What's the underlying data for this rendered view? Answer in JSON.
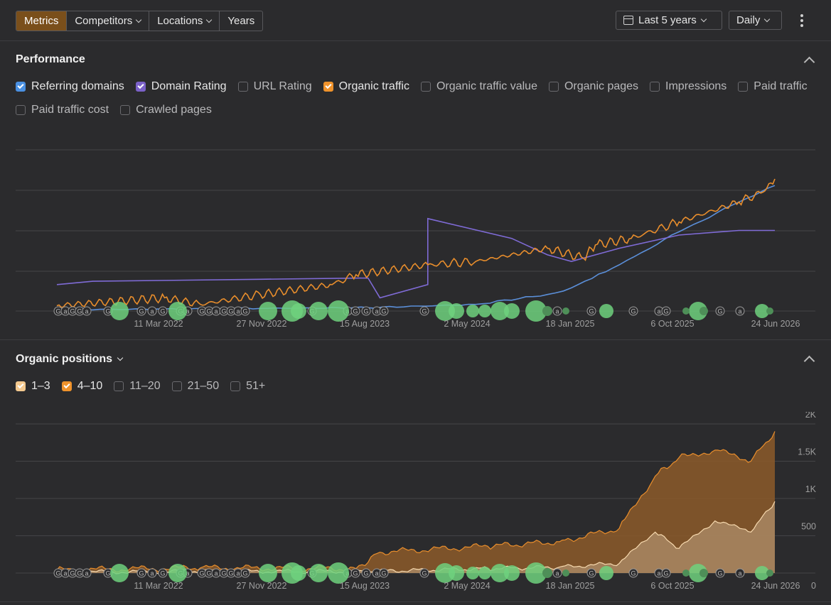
{
  "toolbar": {
    "tabs": [
      {
        "label": "Metrics",
        "active": true,
        "dropdown": false
      },
      {
        "label": "Competitors",
        "active": false,
        "dropdown": true
      },
      {
        "label": "Locations",
        "active": false,
        "dropdown": true
      },
      {
        "label": "Years",
        "active": false,
        "dropdown": false
      }
    ],
    "date_range": "Last 5 years",
    "granularity": "Daily",
    "menu_icon": "kebab-menu-icon"
  },
  "performance": {
    "title": "Performance",
    "metrics": [
      {
        "label": "Referring domains",
        "checked": true,
        "color": "#4a90e2"
      },
      {
        "label": "Domain Rating",
        "checked": true,
        "color": "#7b61c9"
      },
      {
        "label": "URL Rating",
        "checked": false
      },
      {
        "label": "Organic traffic",
        "checked": true,
        "color": "#f0932b"
      },
      {
        "label": "Organic traffic value",
        "checked": false
      },
      {
        "label": "Organic pages",
        "checked": false
      },
      {
        "label": "Impressions",
        "checked": false
      },
      {
        "label": "Paid traffic",
        "checked": false
      },
      {
        "label": "Paid traffic cost",
        "checked": false
      },
      {
        "label": "Crawled pages",
        "checked": false
      }
    ]
  },
  "positions": {
    "title": "Organic positions",
    "ranges": [
      {
        "label": "1–3",
        "checked": true,
        "color": "#f4c98f"
      },
      {
        "label": "4–10",
        "checked": true,
        "color": "#f0932b"
      },
      {
        "label": "11–20",
        "checked": false
      },
      {
        "label": "21–50",
        "checked": false
      },
      {
        "label": "51+",
        "checked": false
      }
    ]
  },
  "chart_data": [
    {
      "type": "line",
      "x_tick_labels": [
        "11 Mar 2022",
        "27 Nov 2022",
        "15 Aug 2023",
        "2 May 2024",
        "18 Jan 2025",
        "6 Oct 2025",
        "24 Jun 2026"
      ],
      "y_scale": "unlabeled (relative)",
      "grid": true,
      "series": [
        {
          "name": "Referring domains",
          "color": "#4a90e2",
          "x": [
            "2021-06",
            "2022-03",
            "2022-11",
            "2023-08",
            "2024-05",
            "2024-11",
            "2025-01",
            "2025-05",
            "2025-10",
            "2026-03",
            "2026-06"
          ],
          "values": [
            2,
            3,
            4,
            5,
            10,
            25,
            35,
            70,
            120,
            165,
            190
          ]
        },
        {
          "name": "Domain Rating",
          "color": "#7b61c9",
          "x": [
            "2021-06",
            "2021-09",
            "2022-11",
            "2023-08",
            "2023-09",
            "2024-01",
            "2024-01",
            "2024-08",
            "2024-11",
            "2025-01",
            "2025-05",
            "2025-10",
            "2026-03",
            "2026-06"
          ],
          "values": [
            40,
            45,
            48,
            50,
            20,
            40,
            140,
            110,
            85,
            75,
            95,
            115,
            122,
            122
          ]
        },
        {
          "name": "Organic traffic",
          "color": "#f0932b",
          "x": [
            "2021-06",
            "2022-03",
            "2022-06",
            "2022-11",
            "2023-05",
            "2023-07",
            "2024-01",
            "2024-05",
            "2024-11",
            "2025-02",
            "2025-03",
            "2025-06",
            "2025-10",
            "2026-03",
            "2026-05",
            "2026-06"
          ],
          "values": [
            8,
            20,
            10,
            25,
            40,
            55,
            70,
            75,
            95,
            80,
            100,
            110,
            135,
            165,
            180,
            200
          ]
        }
      ],
      "event_markers": "google-update-icon / annotation-icon markers along x-axis"
    },
    {
      "type": "area",
      "x_tick_labels": [
        "11 Mar 2022",
        "27 Nov 2022",
        "15 Aug 2023",
        "2 May 2024",
        "18 Jan 2025",
        "6 Oct 2025",
        "24 Jun 2026"
      ],
      "y_tick_labels": [
        "0",
        "500",
        "1K",
        "1.5K",
        "2K"
      ],
      "ylim": [
        0,
        2000
      ],
      "grid": true,
      "series": [
        {
          "name": "4–10",
          "color": "#f0932b",
          "x": [
            "2021-06",
            "2022-06",
            "2023-07",
            "2023-09",
            "2024-06",
            "2024-12",
            "2025-05",
            "2025-08",
            "2025-10",
            "2026-01",
            "2026-04",
            "2026-06"
          ],
          "values": [
            40,
            70,
            60,
            280,
            360,
            420,
            600,
            1300,
            1550,
            1650,
            1500,
            1900
          ]
        },
        {
          "name": "1–3",
          "color": "#f4c98f",
          "x": [
            "2021-06",
            "2022-06",
            "2023-07",
            "2024-06",
            "2024-12",
            "2025-05",
            "2025-08",
            "2025-10",
            "2026-01",
            "2026-04",
            "2026-06"
          ],
          "values": [
            10,
            25,
            20,
            60,
            80,
            130,
            550,
            330,
            700,
            550,
            960
          ]
        }
      ]
    }
  ]
}
